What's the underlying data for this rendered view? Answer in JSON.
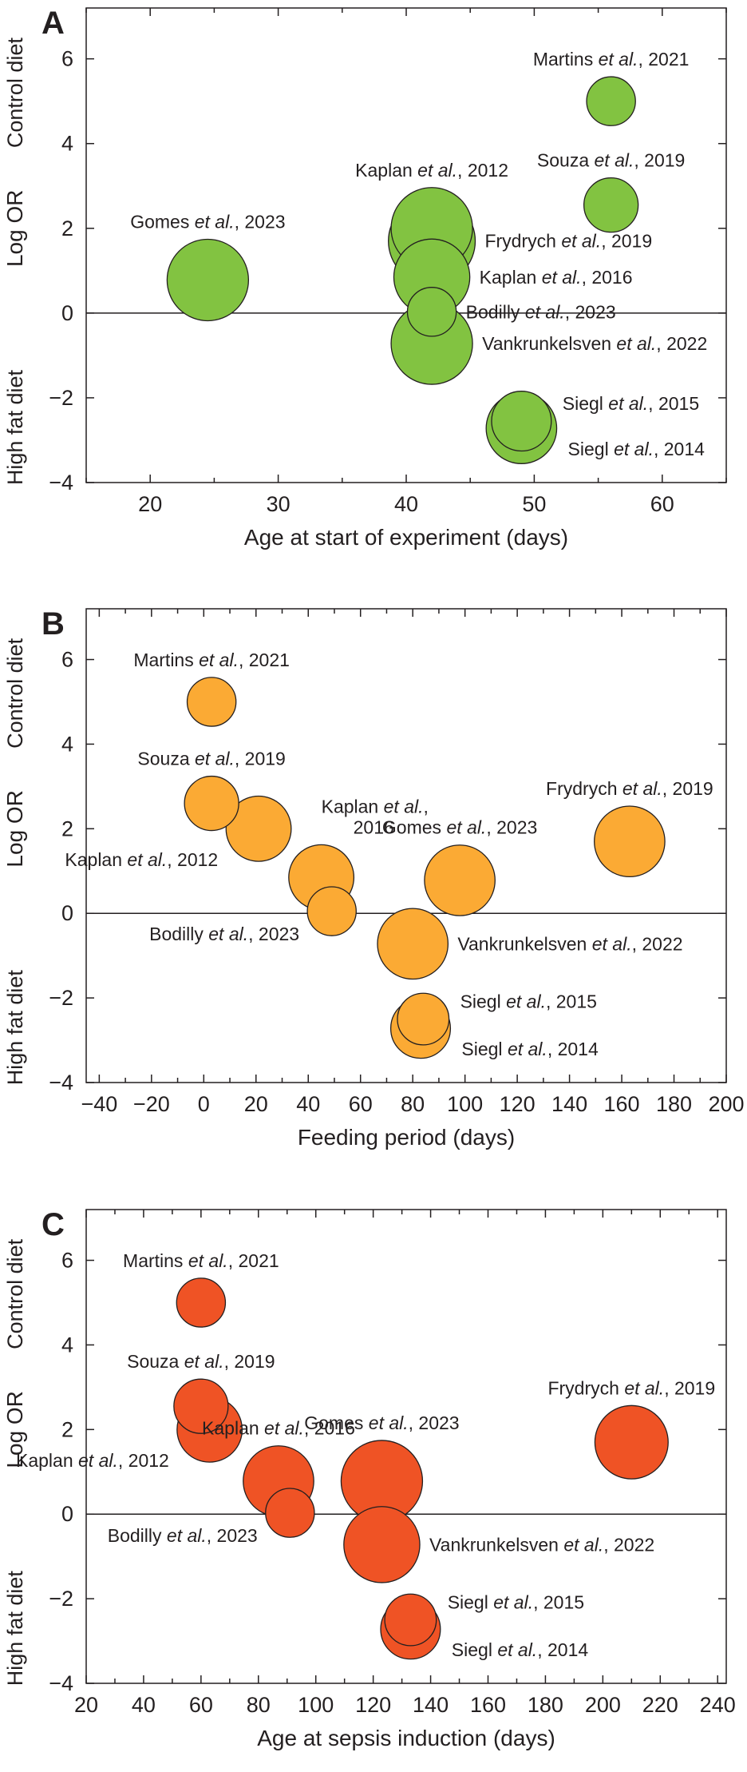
{
  "chart_data": [
    {
      "type": "scatter",
      "panel": "A",
      "xlabel": "Age at start of experiment (days)",
      "ylabel": "Log OR",
      "y_side_top": "Control diet",
      "y_side_bottom": "High fat diet",
      "xlim": [
        15,
        65
      ],
      "ylim": [
        -4,
        7.2
      ],
      "xticks": [
        20,
        30,
        40,
        50,
        60
      ],
      "yticks": [
        -4,
        -2,
        0,
        2,
        4,
        6
      ],
      "color": "#82c341",
      "points": [
        {
          "study": "Gomes",
          "year": "2023",
          "x": 24.5,
          "y": 0.78,
          "weight": 1.5,
          "label_pos": "above"
        },
        {
          "study": "Frydrych",
          "year": "2019",
          "x": 42,
          "y": 1.7,
          "weight": 1.6,
          "label_pos": "right"
        },
        {
          "study": "Kaplan",
          "year": "2012",
          "x": 42,
          "y": 2.0,
          "weight": 1.5,
          "label_pos": "above"
        },
        {
          "study": "Kaplan",
          "year": "2016",
          "x": 42,
          "y": 0.85,
          "weight": 1.4,
          "label_pos": "right"
        },
        {
          "study": "Bodilly",
          "year": "2023",
          "x": 42,
          "y": 0.03,
          "weight": 0.9,
          "label_pos": "right"
        },
        {
          "study": "Vankrunkelsven",
          "year": "2022",
          "x": 42,
          "y": -0.72,
          "weight": 1.5,
          "label_pos": "right"
        },
        {
          "study": "Martins",
          "year": "2021",
          "x": 56,
          "y": 5.0,
          "weight": 0.9,
          "label_pos": "above"
        },
        {
          "study": "Souza",
          "year": "2019",
          "x": 56,
          "y": 2.55,
          "weight": 1.0,
          "label_pos": "above"
        },
        {
          "study": "Siegl",
          "year": "2014",
          "x": 49,
          "y": -2.72,
          "weight": 1.3,
          "label_pos": "right-low"
        },
        {
          "study": "Siegl",
          "year": "2015",
          "x": 49,
          "y": -2.55,
          "weight": 1.1,
          "label_pos": "right-high"
        }
      ]
    },
    {
      "type": "scatter",
      "panel": "B",
      "xlabel": "Feeding period (days)",
      "ylabel": "Log OR",
      "y_side_top": "Control diet",
      "y_side_bottom": "High fat diet",
      "xlim": [
        -45,
        200
      ],
      "ylim": [
        -4,
        7.2
      ],
      "xticks": [
        -40,
        -20,
        0,
        20,
        40,
        60,
        80,
        100,
        120,
        140,
        160,
        180,
        200
      ],
      "yticks": [
        -4,
        -2,
        0,
        2,
        4,
        6
      ],
      "color": "#fbaa34",
      "points": [
        {
          "study": "Martins",
          "year": "2021",
          "x": 3,
          "y": 5.0,
          "weight": 0.9,
          "label_pos": "above"
        },
        {
          "study": "Souza",
          "year": "2019",
          "x": 3,
          "y": 2.6,
          "weight": 1.0,
          "label_pos": "above"
        },
        {
          "study": "Kaplan",
          "year": "2012",
          "x": 21,
          "y": 2.0,
          "weight": 1.2,
          "label_pos": "below-left"
        },
        {
          "study": "Kaplan",
          "year": "2016",
          "x": 45,
          "y": 0.85,
          "weight": 1.2,
          "label_pos": "above-wrap"
        },
        {
          "study": "Bodilly",
          "year": "2023",
          "x": 49,
          "y": 0.05,
          "weight": 0.9,
          "label_pos": "below-left"
        },
        {
          "study": "Gomes",
          "year": "2023",
          "x": 98,
          "y": 0.78,
          "weight": 1.3,
          "label_pos": "above"
        },
        {
          "study": "Vankrunkelsven",
          "year": "2022",
          "x": 80,
          "y": -0.72,
          "weight": 1.3,
          "label_pos": "right"
        },
        {
          "study": "Frydrych",
          "year": "2019",
          "x": 163,
          "y": 1.7,
          "weight": 1.3,
          "label_pos": "above"
        },
        {
          "study": "Siegl",
          "year": "2014",
          "x": 83,
          "y": -2.72,
          "weight": 1.1,
          "label_pos": "right-low"
        },
        {
          "study": "Siegl",
          "year": "2015",
          "x": 84,
          "y": -2.5,
          "weight": 0.95,
          "label_pos": "right-high"
        }
      ]
    },
    {
      "type": "scatter",
      "panel": "C",
      "xlabel": "Age at sepsis induction (days)",
      "ylabel": "Log OR",
      "y_side_top": "Control diet",
      "y_side_bottom": "High fat diet",
      "xlim": [
        20,
        243
      ],
      "ylim": [
        -4,
        7.2
      ],
      "xticks": [
        20,
        40,
        60,
        80,
        100,
        120,
        140,
        160,
        180,
        200,
        220,
        240
      ],
      "yticks": [
        -4,
        -2,
        0,
        2,
        4,
        6
      ],
      "color": "#ef5325",
      "points": [
        {
          "study": "Martins",
          "year": "2021",
          "x": 60,
          "y": 5.0,
          "weight": 0.9,
          "label_pos": "above"
        },
        {
          "study": "Kaplan",
          "year": "2012",
          "x": 63,
          "y": 2.0,
          "weight": 1.2,
          "label_pos": "below-left"
        },
        {
          "study": "Souza",
          "year": "2019",
          "x": 60,
          "y": 2.55,
          "weight": 1.0,
          "label_pos": "above"
        },
        {
          "study": "Kaplan",
          "year": "2016",
          "x": 87,
          "y": 0.78,
          "weight": 1.3,
          "label_pos": "above"
        },
        {
          "study": "Bodilly",
          "year": "2023",
          "x": 91,
          "y": 0.03,
          "weight": 0.9,
          "label_pos": "below-left"
        },
        {
          "study": "Gomes",
          "year": "2023",
          "x": 123,
          "y": 0.78,
          "weight": 1.5,
          "label_pos": "above"
        },
        {
          "study": "Vankrunkelsven",
          "year": "2022",
          "x": 123,
          "y": -0.72,
          "weight": 1.4,
          "label_pos": "right"
        },
        {
          "study": "Frydrych",
          "year": "2019",
          "x": 210,
          "y": 1.7,
          "weight": 1.35,
          "label_pos": "above"
        },
        {
          "study": "Siegl",
          "year": "2014",
          "x": 133,
          "y": -2.72,
          "weight": 1.1,
          "label_pos": "right-low"
        },
        {
          "study": "Siegl",
          "year": "2015",
          "x": 133,
          "y": -2.5,
          "weight": 0.95,
          "label_pos": "right-high"
        }
      ]
    }
  ],
  "label_connector": "et al.",
  "label_separator": ","
}
